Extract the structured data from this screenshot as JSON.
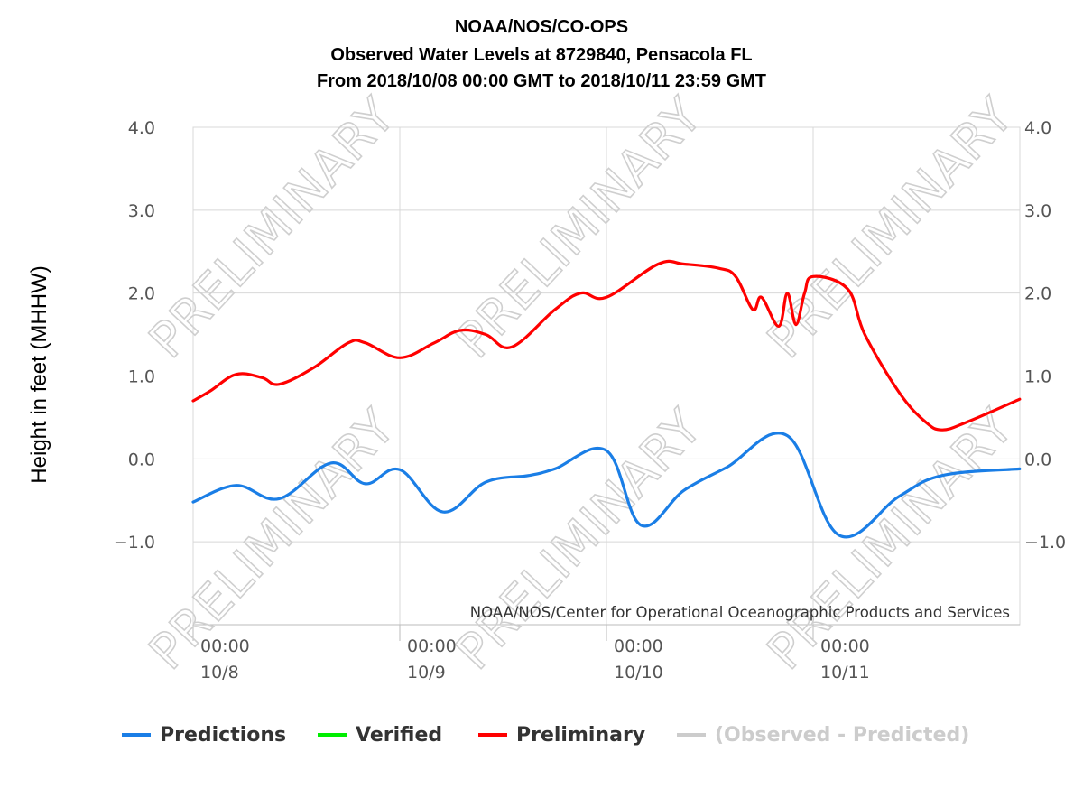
{
  "chart_data": {
    "type": "line",
    "title": "NOAA/NOS/CO-OPS",
    "subtitle_lines": [
      "Observed Water Levels at 8729840, Pensacola FL",
      "From 2018/10/08 00:00 GMT to 2018/10/11 23:59 GMT"
    ],
    "ylabel": "Height in feet (MHHW)",
    "ylim": [
      -2.0,
      4.0
    ],
    "xlim": [
      "2018-10-08 00:00",
      "2018-10-11 23:59"
    ],
    "yticks": [
      "4.0",
      "3.0",
      "2.0",
      "1.0",
      "0.0",
      "−1.0"
    ],
    "ytick_values": [
      4,
      3,
      2,
      1,
      0,
      -1
    ],
    "xticks": [
      {
        "time": "00:00",
        "date": "10/8"
      },
      {
        "time": "00:00",
        "date": "10/9"
      },
      {
        "time": "00:00",
        "date": "10/10"
      },
      {
        "time": "00:00",
        "date": "10/11"
      }
    ],
    "xtick_days": [
      0,
      1,
      2,
      3
    ],
    "grid": true,
    "credit": "NOAA/NOS/Center for Operational Oceanographic Products and Services",
    "watermark": "PRELIMINARY",
    "legend_position": "bottom",
    "legend": [
      {
        "name": "Predictions",
        "color": "#1a7ee6"
      },
      {
        "name": "Verified",
        "color": "#00ee00"
      },
      {
        "name": "Preliminary",
        "color": "#ff0000"
      },
      {
        "name": "(Observed - Predicted)",
        "color": "#cccccc"
      }
    ],
    "series": [
      {
        "name": "Predictions",
        "color": "#1a7ee6",
        "x": [
          "10/8 00:00",
          "10/8 05:00",
          "10/8 10:00",
          "10/8 16:00",
          "10/8 20:00",
          "10/9 00:00",
          "10/9 05:00",
          "10/9 10:00",
          "10/9 15:00",
          "10/9 18:00",
          "10/10 00:00",
          "10/10 04:00",
          "10/10 09:00",
          "10/10 14:00",
          "10/10 21:00",
          "10/11 03:00",
          "10/11 10:00",
          "10/11 15:00",
          "10/11 23:59"
        ],
        "values": [
          -0.52,
          -0.32,
          -0.48,
          -0.05,
          -0.3,
          -0.13,
          -0.64,
          -0.28,
          -0.2,
          -0.12,
          0.1,
          -0.8,
          -0.38,
          -0.1,
          0.28,
          -0.92,
          -0.45,
          -0.2,
          -0.12
        ]
      },
      {
        "name": "Preliminary",
        "color": "#ff0000",
        "x": [
          "10/8 00:00",
          "10/8 02:00",
          "10/8 05:00",
          "10/8 08:00",
          "10/8 10:00",
          "10/8 14:00",
          "10/8 18:00",
          "10/8 20:00",
          "10/8 24:00",
          "10/9 04:00",
          "10/9 07:00",
          "10/9 10:00",
          "10/9 13:00",
          "10/9 18:00",
          "10/9 21:00",
          "10/10 00:00",
          "10/10 06:00",
          "10/10 09:00",
          "10/10 13:00",
          "10/10 15:00",
          "10/10 17:00",
          "10/10 18:00",
          "10/10 20:00",
          "10/10 21:00",
          "10/10 22:00",
          "10/10 23:00",
          "10/11 00:00",
          "10/11 04:00",
          "10/11 06:00",
          "10/11 10:00",
          "10/11 13:00",
          "10/11 15:00",
          "10/11 18:00",
          "10/11 23:59"
        ],
        "values": [
          0.7,
          0.82,
          1.02,
          0.98,
          0.9,
          1.1,
          1.4,
          1.4,
          1.22,
          1.4,
          1.55,
          1.5,
          1.35,
          1.8,
          2.0,
          1.95,
          2.35,
          2.35,
          2.3,
          2.2,
          1.8,
          1.95,
          1.6,
          2.0,
          1.62,
          2.0,
          2.2,
          2.05,
          1.5,
          0.8,
          0.45,
          0.35,
          0.45,
          0.72
        ]
      }
    ]
  }
}
